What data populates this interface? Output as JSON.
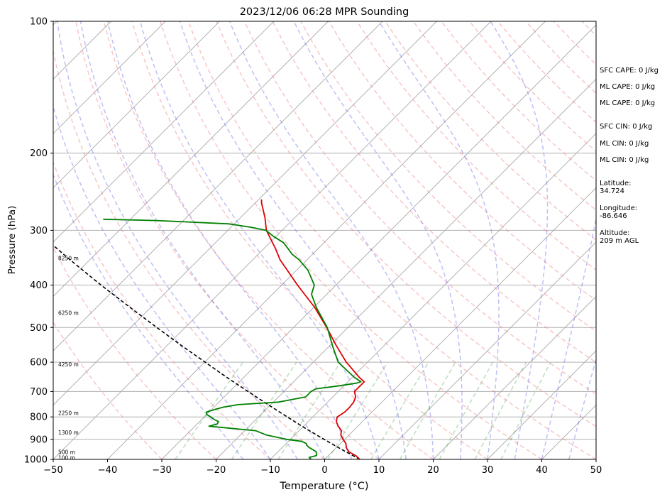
{
  "chart_data": {
    "type": "skew-t",
    "title": "2023/12/06 06:28 MPR Sounding",
    "xlabel": "Temperature (°C)",
    "ylabel": "Pressure (hPa)",
    "xlim": [
      -50,
      50
    ],
    "ylim": [
      1000,
      100
    ],
    "y_scale": "log",
    "x_ticks": [
      "−50",
      "−40",
      "−30",
      "−20",
      "−10",
      "0",
      "10",
      "20",
      "30",
      "40",
      "50"
    ],
    "y_ticks": [
      "100",
      "200",
      "300",
      "400",
      "500",
      "600",
      "700",
      "800",
      "900",
      "1000"
    ],
    "height_labels": [
      {
        "p": 990,
        "text": "100 m"
      },
      {
        "p": 962,
        "text": "500 m"
      },
      {
        "p": 867,
        "text": "1300 m"
      },
      {
        "p": 783,
        "text": "2250 m"
      },
      {
        "p": 607,
        "text": "4250 m"
      },
      {
        "p": 463,
        "text": "6250 m"
      },
      {
        "p": 347,
        "text": "8250 m"
      }
    ],
    "temperature": {
      "color": "#e00000",
      "p": [
        1000,
        980,
        960,
        940,
        920,
        900,
        880,
        860,
        840,
        820,
        800,
        780,
        760,
        740,
        720,
        700,
        680,
        665,
        650,
        600,
        550,
        500,
        450,
        400,
        350,
        330,
        300,
        280,
        260,
        255
      ],
      "t": [
        6.5,
        5.0,
        3.0,
        1.8,
        1.0,
        -0.3,
        -1.5,
        -2.2,
        -3.6,
        -4.8,
        -5.5,
        -5.0,
        -5.0,
        -5.2,
        -5.8,
        -7.0,
        -7.0,
        -7.0,
        -8.7,
        -13.9,
        -18.8,
        -23.9,
        -29.8,
        -37.1,
        -45.0,
        -47.9,
        -52.9,
        -55.6,
        -58.8,
        -59.5
      ]
    },
    "dewpoint": {
      "color": "#008000",
      "p": [
        1000,
        990,
        980,
        960,
        940,
        930,
        920,
        910,
        900,
        880,
        860,
        840,
        830,
        820,
        810,
        800,
        790,
        780,
        770,
        760,
        750,
        740,
        720,
        700,
        690,
        680,
        670,
        665,
        650,
        600,
        550,
        500,
        450,
        420,
        400,
        370,
        350,
        340,
        330,
        320,
        310,
        300,
        295,
        290,
        285,
        283
      ],
      "t": [
        -2.5,
        -3.2,
        -2.2,
        -3.0,
        -5.0,
        -5.8,
        -6.3,
        -7.5,
        -10.7,
        -15.2,
        -18.0,
        -27.4,
        -26.3,
        -26.5,
        -27.8,
        -28.8,
        -30.0,
        -30.5,
        -29.5,
        -28.3,
        -26.0,
        -19.0,
        -15.0,
        -15.0,
        -14.6,
        -11.1,
        -8.2,
        -7.6,
        -9.6,
        -15.4,
        -19.5,
        -23.8,
        -29.5,
        -32.8,
        -34.0,
        -37.9,
        -41.5,
        -43.8,
        -45.6,
        -47.5,
        -50.4,
        -53.0,
        -56.5,
        -61.0,
        -75.0,
        -85.0
      ]
    },
    "parcel": {
      "color": "#000000",
      "style": "dashed",
      "p": [
        1000,
        950,
        900,
        850,
        800,
        750,
        700,
        650,
        600,
        550,
        500,
        450,
        400,
        350,
        300,
        280,
        260
      ],
      "t": [
        6.5,
        1.4,
        -3.8,
        -9.2,
        -14.7,
        -20.5,
        -26.6,
        -33.1,
        -39.9,
        -47.3,
        -55.2,
        -63.8,
        -73.3,
        -83.7,
        -95.4,
        -100.5,
        -105.9
      ]
    },
    "background": {
      "isotherms": "gray solid",
      "dry_adiabats": "red dashed",
      "moist_adiabats": "blue dashed",
      "mixing_ratio": "green dashed"
    },
    "stats": [
      {
        "text": "SFC CAPE: 0 J/kg"
      },
      {
        "text": "ML CAPE: 0 J/kg"
      },
      {
        "text": "ML CAPE: 0 J/kg"
      },
      {
        "text": "SFC CIN: 0 J/kg"
      },
      {
        "text": "ML CIN: 0 J/kg"
      },
      {
        "text": "ML CIN: 0 J/kg"
      }
    ],
    "location": [
      {
        "label": "Latitude:",
        "value": "34.724"
      },
      {
        "label": "Longitude:",
        "value": "-86.646"
      },
      {
        "label": "Altitude:",
        "value": "209 m AGL"
      }
    ]
  }
}
